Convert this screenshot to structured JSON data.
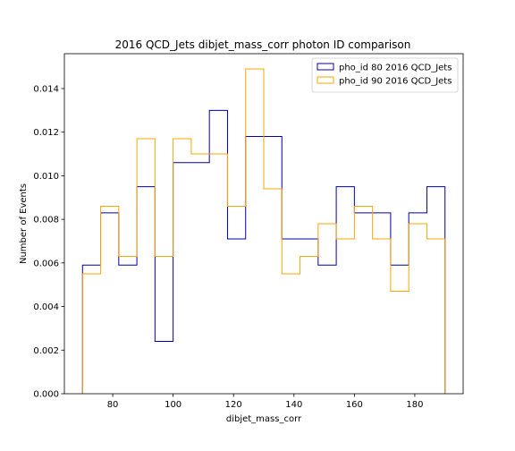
{
  "chart_data": {
    "type": "histogram-step",
    "title": "2016 QCD_Jets dibjet_mass_corr photon ID comparison",
    "xlabel": "dibjet_mass_corr",
    "ylabel": "Number of Events",
    "xlim": [
      64,
      196
    ],
    "ylim": [
      0,
      0.0156
    ],
    "xticks": [
      80,
      100,
      120,
      140,
      160,
      180
    ],
    "yticks": [
      0.0,
      0.002,
      0.004,
      0.006,
      0.008,
      0.01,
      0.012,
      0.014
    ],
    "ytick_labels": [
      "0.000",
      "0.002",
      "0.004",
      "0.006",
      "0.008",
      "0.010",
      "0.012",
      "0.014"
    ],
    "bin_edges": [
      70,
      76,
      82,
      88,
      94,
      100,
      106,
      112,
      118,
      124,
      130,
      136,
      142,
      148,
      154,
      160,
      166,
      172,
      178,
      184,
      190
    ],
    "grid": false,
    "legend_position": "top-right",
    "series": [
      {
        "name": "pho_id 80 2016 QCD_Jets",
        "color": "#0000aa",
        "values": [
          0.0059,
          0.0083,
          0.0059,
          0.0095,
          0.0024,
          0.0106,
          0.0106,
          0.013,
          0.0071,
          0.0118,
          0.0118,
          0.0071,
          0.0071,
          0.0059,
          0.0095,
          0.0083,
          0.0083,
          0.0059,
          0.0083,
          0.0095
        ]
      },
      {
        "name": "pho_id 90 2016 QCD_Jets",
        "color": "#ffa500",
        "values": [
          0.0055,
          0.0086,
          0.0063,
          0.0117,
          0.0063,
          0.0117,
          0.011,
          0.011,
          0.0086,
          0.0149,
          0.0094,
          0.0055,
          0.0063,
          0.0078,
          0.0071,
          0.0086,
          0.0071,
          0.0047,
          0.0078,
          0.0071
        ]
      }
    ]
  }
}
